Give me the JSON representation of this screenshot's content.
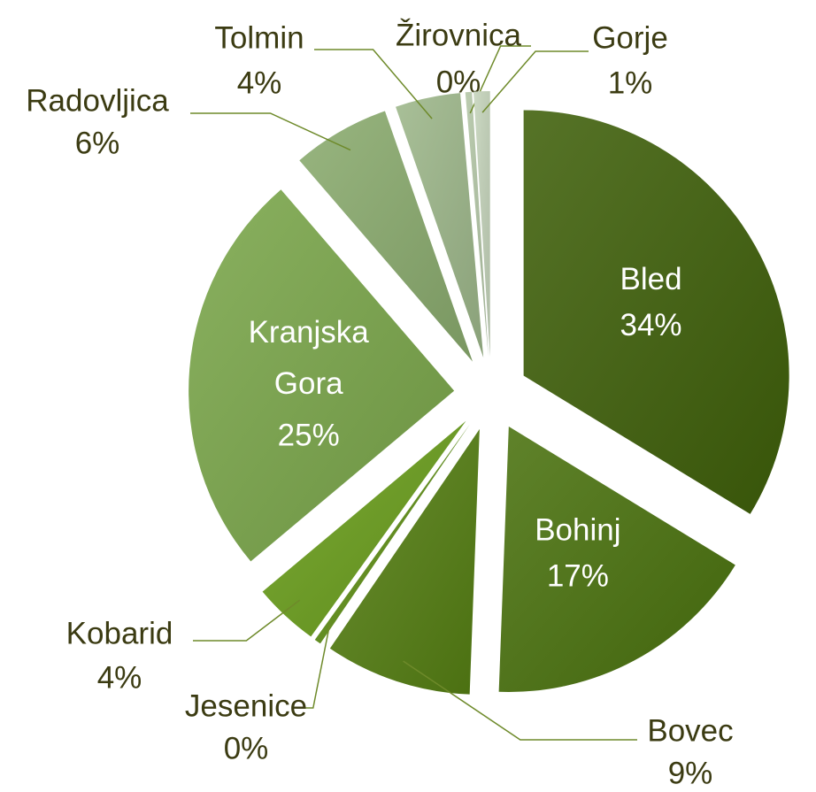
{
  "chart_data": {
    "type": "pie",
    "categories": [
      "Bled",
      "Bohinj",
      "Bovec",
      "Jesenice",
      "Kobarid",
      "Kranjska Gora",
      "Radovljica",
      "Tolmin",
      "Žirovnica",
      "Gorje"
    ],
    "values": [
      34,
      17,
      9,
      0.4,
      4,
      25,
      6,
      4,
      0.4,
      1
    ],
    "value_labels": [
      "34%",
      "17%",
      "9%",
      "0%",
      "4%",
      "25%",
      "6%",
      "4%",
      "0%",
      "1%"
    ],
    "colors": [
      "#3f600a",
      "#4a720e",
      "#557f13",
      "#5f8f16",
      "#6a9e1c",
      "#7aa64a",
      "#8aab6e",
      "#9db78a",
      "#b3c6a6",
      "#c5d4bb"
    ]
  }
}
